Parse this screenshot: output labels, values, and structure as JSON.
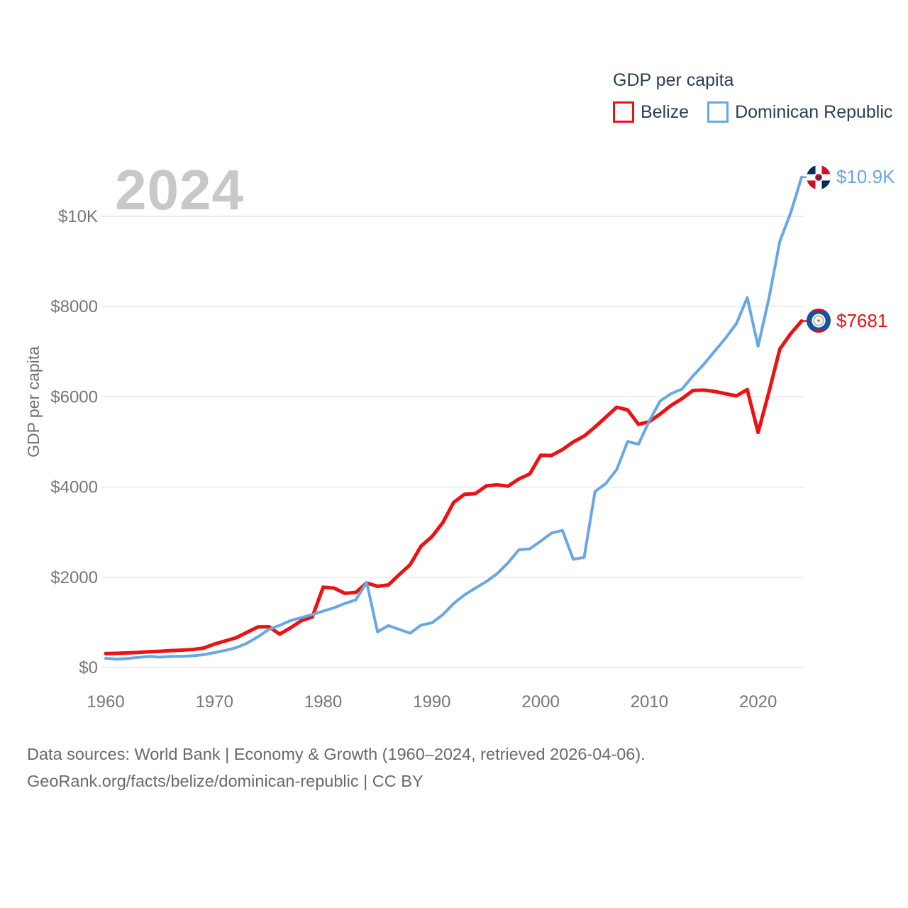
{
  "legend": {
    "title": "GDP per capita"
  },
  "watermark": "2024",
  "axis": {
    "y_title": "GDP per capita"
  },
  "footer": {
    "line1": "Data sources: World Bank | Economy & Growth (1960–2024, retrieved 2026-04-06).",
    "line2": "GeoRank.org/facts/belize/dominican-republic | CC BY"
  },
  "colors": {
    "background": "#ffffff",
    "gridline": "#e9e9e9",
    "tick_text": "#767676",
    "legend_text": "#2c3e55",
    "watermark": "#c8c8c8",
    "footer_text": "#696969",
    "belize_red": "#ee1111",
    "dominican_blue": "#68a7e6"
  },
  "chart_data": {
    "type": "line",
    "title": "GDP per capita",
    "xlabel": "",
    "ylabel": "GDP per capita",
    "xlim": [
      1960,
      2024
    ],
    "ylim": [
      0,
      10000
    ],
    "grid": "horizontal",
    "legend_position": "top-right",
    "start_year": 1960,
    "x_ticks": [
      {
        "value": 1960,
        "label": "1960"
      },
      {
        "value": 1970,
        "label": "1970"
      },
      {
        "value": 1980,
        "label": "1980"
      },
      {
        "value": 1990,
        "label": "1990"
      },
      {
        "value": 2000,
        "label": "2000"
      },
      {
        "value": 2010,
        "label": "2010"
      },
      {
        "value": 2020,
        "label": "2020"
      }
    ],
    "y_ticks": [
      {
        "value": 0,
        "label": "$0"
      },
      {
        "value": 2000,
        "label": "$2000"
      },
      {
        "value": 4000,
        "label": "$4000"
      },
      {
        "value": 6000,
        "label": "$6000"
      },
      {
        "value": 8000,
        "label": "$8000"
      },
      {
        "value": 10000,
        "label": "$10K"
      }
    ],
    "series": [
      {
        "name": "Belize",
        "color": "#ee1111",
        "width": 5,
        "end_label": "$7681",
        "final_value": 7681,
        "values": [
          310,
          315,
          325,
          335,
          350,
          360,
          375,
          385,
          400,
          430,
          520,
          590,
          660,
          780,
          900,
          905,
          740,
          880,
          1040,
          1120,
          1780,
          1760,
          1645,
          1665,
          1875,
          1800,
          1830,
          2060,
          2280,
          2690,
          2900,
          3210,
          3660,
          3840,
          3855,
          4025,
          4050,
          4020,
          4180,
          4290,
          4705,
          4700,
          4830,
          5000,
          5130,
          5330,
          5550,
          5770,
          5710,
          5390,
          5450,
          5620,
          5810,
          5960,
          6140,
          6150,
          6120,
          6070,
          6020,
          6160,
          5210,
          6110,
          7060,
          7400,
          7681
        ]
      },
      {
        "name": "Dominican Republic",
        "color": "#68a7e6",
        "width": 4,
        "end_label": "$10.9K",
        "final_value": 10900,
        "values": [
          205,
          185,
          200,
          225,
          245,
          230,
          245,
          250,
          260,
          285,
          330,
          380,
          440,
          540,
          680,
          845,
          935,
          1040,
          1105,
          1175,
          1250,
          1325,
          1420,
          1500,
          1890,
          790,
          930,
          845,
          760,
          940,
          990,
          1170,
          1420,
          1610,
          1760,
          1905,
          2080,
          2320,
          2610,
          2630,
          2800,
          2980,
          3040,
          2400,
          2440,
          3900,
          4080,
          4390,
          5010,
          4950,
          5470,
          5910,
          6070,
          6170,
          6460,
          6720,
          7010,
          7300,
          7620,
          8200,
          7120,
          8190,
          9450,
          10080,
          10870
        ]
      }
    ]
  }
}
